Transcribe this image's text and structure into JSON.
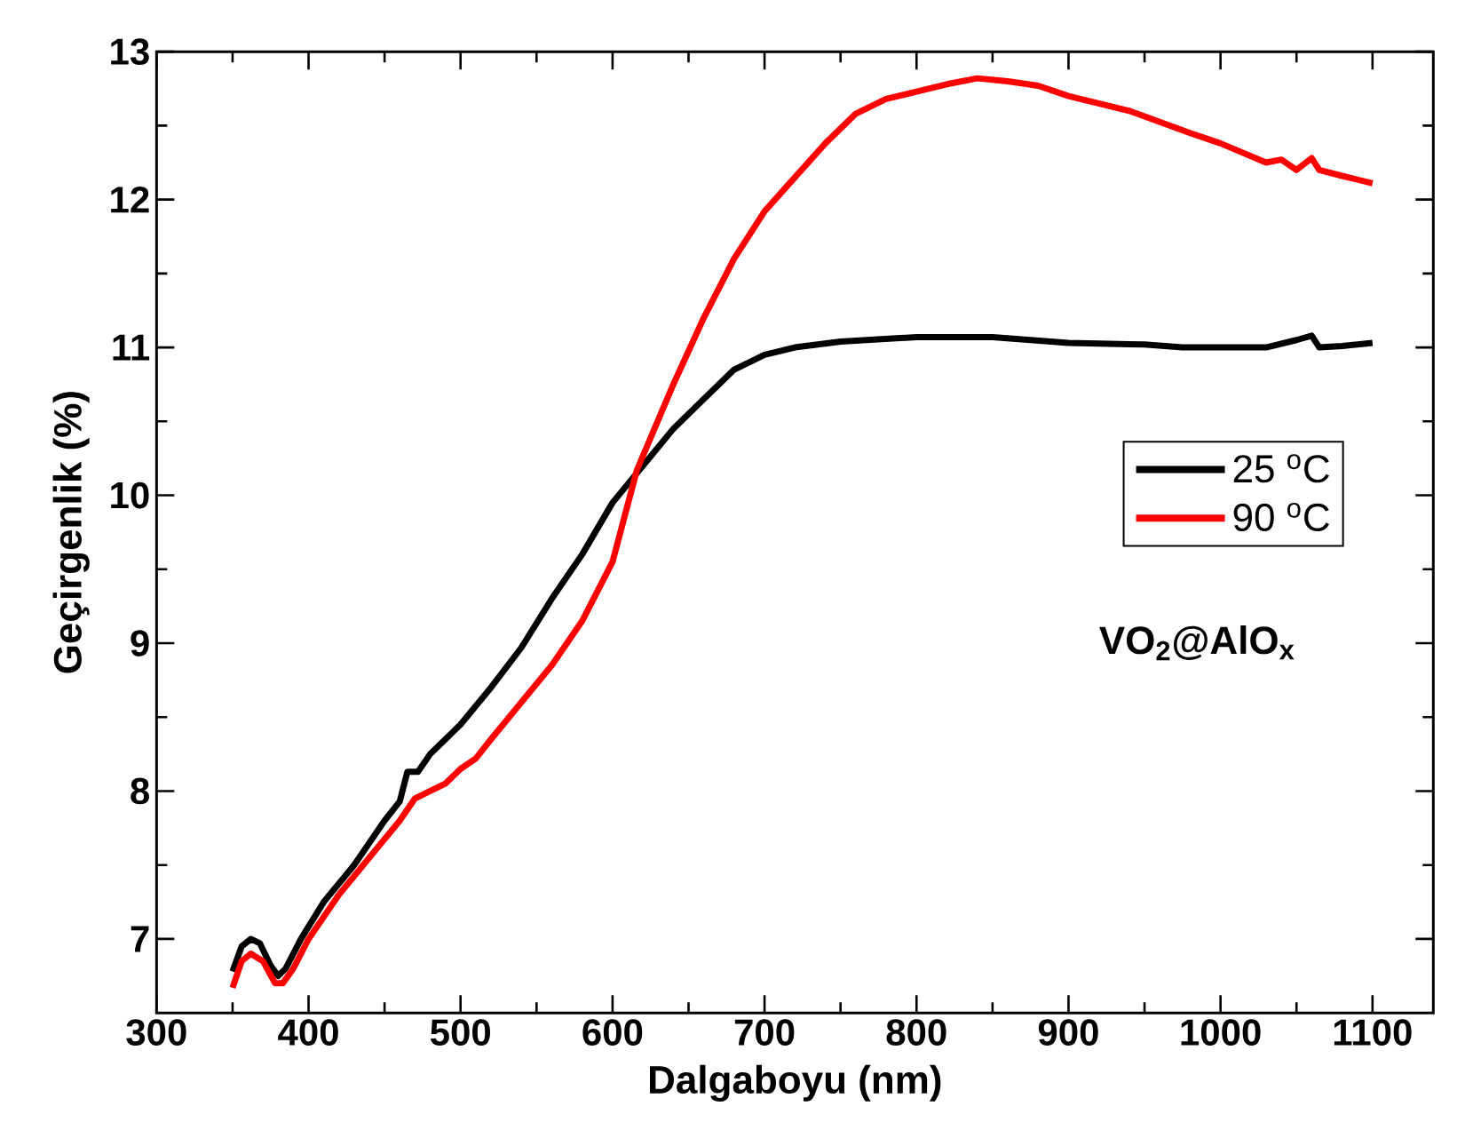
{
  "chart_data": {
    "type": "line",
    "xlabel": "Dalgaboyu (nm)",
    "ylabel": "Geçirgenlik (%)",
    "xlim": [
      300,
      1140
    ],
    "ylim": [
      6.5,
      13
    ],
    "xticks": [
      300,
      400,
      500,
      600,
      700,
      800,
      900,
      1000,
      1100
    ],
    "yticks": [
      7,
      8,
      9,
      10,
      11,
      12,
      13
    ],
    "legend": "right",
    "line_style": "solid",
    "annotations": [
      "VO$_{2}$@AlO$_{x}$"
    ],
    "series": [
      {
        "name": "25 $^{o}$C",
        "color": "#000000",
        "x": [
          350,
          356,
          362,
          368,
          375,
          380,
          385,
          395,
          410,
          430,
          440,
          450,
          460,
          465,
          472,
          480,
          490,
          500,
          520,
          540,
          560,
          580,
          600,
          620,
          640,
          660,
          680,
          700,
          720,
          750,
          800,
          850,
          900,
          950,
          975,
          1000,
          1030,
          1050,
          1060,
          1065,
          1080,
          1100
        ],
        "values": [
          6.78,
          6.95,
          7.0,
          6.97,
          6.82,
          6.75,
          6.8,
          7.0,
          7.25,
          7.5,
          7.65,
          7.8,
          7.93,
          8.13,
          8.13,
          8.25,
          8.35,
          8.45,
          8.7,
          8.97,
          9.3,
          9.6,
          9.95,
          10.2,
          10.45,
          10.65,
          10.85,
          10.95,
          11.0,
          11.04,
          11.07,
          11.07,
          11.03,
          11.02,
          11.0,
          11.0,
          11.0,
          11.05,
          11.08,
          11.0,
          11.01,
          11.03
        ]
      },
      {
        "name": "90 $^{o}$C",
        "color": "#ff0000",
        "x": [
          350,
          356,
          362,
          370,
          378,
          383,
          390,
          400,
          420,
          440,
          460,
          470,
          480,
          490,
          500,
          510,
          520,
          540,
          560,
          580,
          600,
          616,
          640,
          660,
          680,
          700,
          720,
          740,
          760,
          780,
          800,
          820,
          840,
          860,
          880,
          900,
          940,
          980,
          1000,
          1030,
          1040,
          1050,
          1060,
          1065,
          1080,
          1100
        ],
        "values": [
          6.67,
          6.85,
          6.9,
          6.85,
          6.7,
          6.7,
          6.8,
          7.0,
          7.3,
          7.55,
          7.8,
          7.95,
          8.0,
          8.05,
          8.15,
          8.22,
          8.35,
          8.6,
          8.85,
          9.15,
          9.55,
          10.17,
          10.75,
          11.2,
          11.6,
          11.92,
          12.15,
          12.38,
          12.58,
          12.68,
          12.73,
          12.78,
          12.82,
          12.8,
          12.77,
          12.7,
          12.6,
          12.45,
          12.38,
          12.25,
          12.27,
          12.2,
          12.28,
          12.2,
          12.16,
          12.11
        ]
      }
    ]
  }
}
